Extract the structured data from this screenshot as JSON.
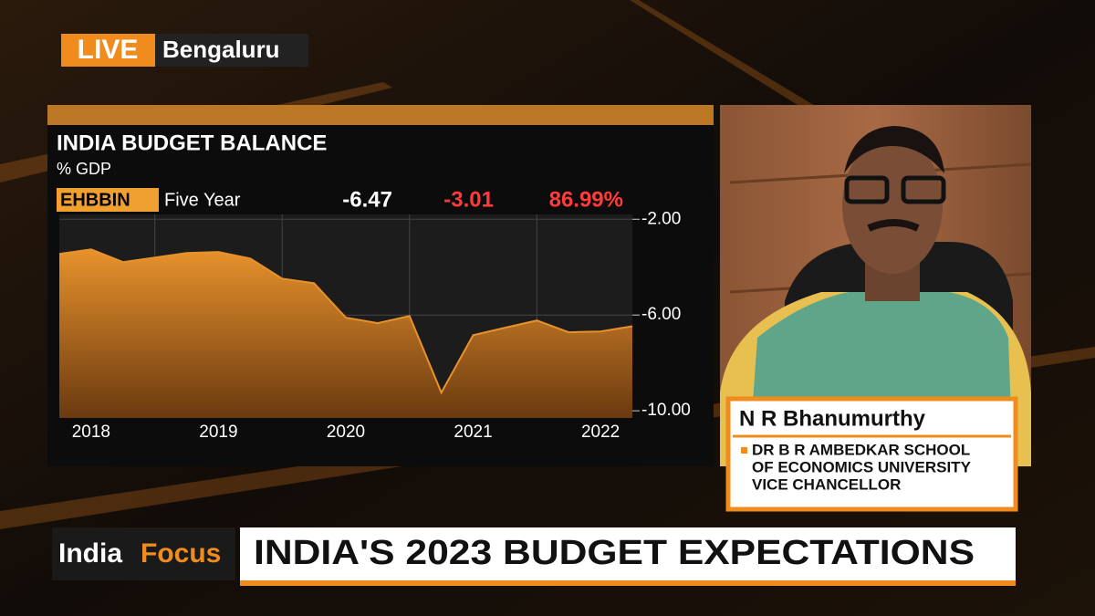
{
  "live": "LIVE",
  "location": "Bengaluru",
  "chart_data": {
    "type": "area",
    "title": "INDIA BUDGET BALANCE",
    "subtitle": "% GDP",
    "ticker": "EHBBIN",
    "period": "Five Year",
    "stats": [
      {
        "text": "-6.47",
        "color": "#ffffff"
      },
      {
        "text": "-3.01",
        "color": "#ff3b3b"
      },
      {
        "text": "86.99%",
        "color": "#ff3b3b"
      }
    ],
    "x": [
      2018.25,
      2018.5,
      2018.75,
      2019.0,
      2019.25,
      2019.5,
      2019.75,
      2020.0,
      2020.25,
      2020.5,
      2020.75,
      2021.0,
      2021.25,
      2021.5,
      2021.75,
      2022.0,
      2022.25,
      2022.5,
      2022.75
    ],
    "series": [
      {
        "color": "#e8922c",
        "values": [
          -3.45,
          -3.26,
          -3.79,
          -3.6,
          -3.41,
          -3.37,
          -3.64,
          -4.48,
          -4.67,
          -6.11,
          -6.34,
          -6.04,
          -9.24,
          -6.84,
          -6.53,
          -6.23,
          -6.72,
          -6.69,
          -6.47
        ]
      }
    ],
    "xlim": [
      2018.25,
      2022.75
    ],
    "xticks": [
      {
        "value": 2018,
        "label": "2018"
      },
      {
        "value": 2019,
        "label": "2019"
      },
      {
        "value": 2020,
        "label": "2020"
      },
      {
        "value": 2021,
        "label": "2021"
      },
      {
        "value": 2022,
        "label": "2022"
      }
    ],
    "ylim": [
      -10.3,
      -1.8
    ],
    "yticks": [
      {
        "value": -2,
        "label": "-2.00"
      },
      {
        "value": -6,
        "label": "-6.00"
      },
      {
        "value": -10,
        "label": "-10.00"
      }
    ],
    "grid": true
  },
  "guest": {
    "name": "N R Bhanumurthy",
    "title_lines": [
      "DR B R AMBEDKAR SCHOOL",
      "OF ECONOMICS UNIVERSITY",
      "VICE CHANCELLOR"
    ]
  },
  "show": {
    "part1": "India",
    "part2": "Focus"
  },
  "headline": "INDIA'S 2023 BUDGET EXPECTATIONS"
}
